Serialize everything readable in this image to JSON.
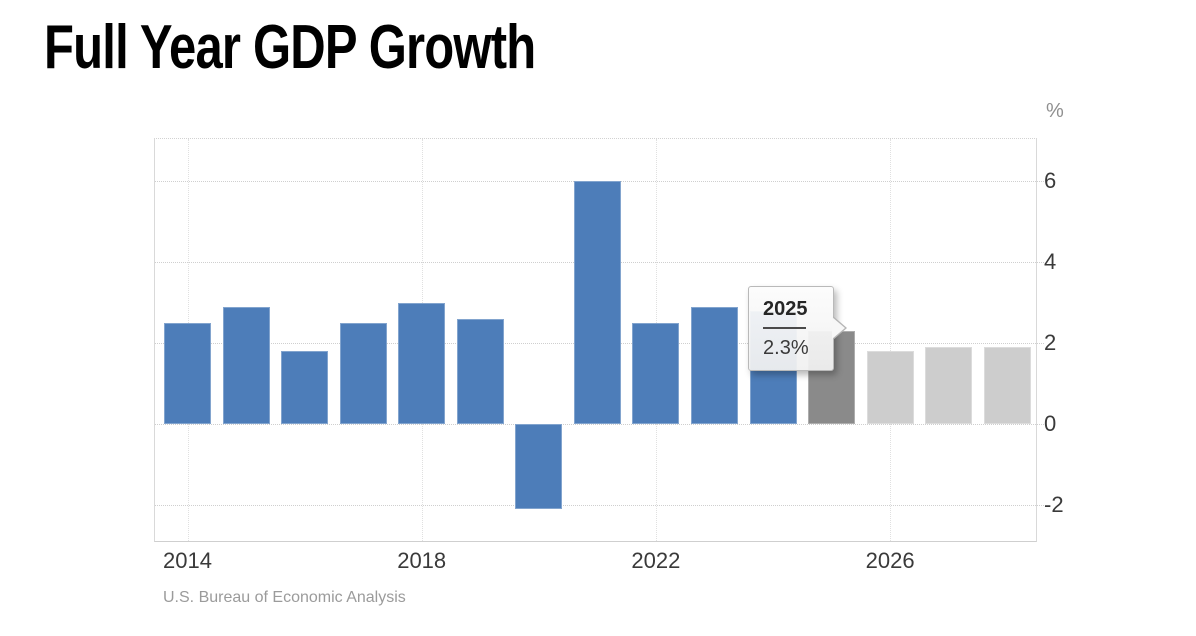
{
  "chart_data": {
    "type": "bar",
    "title": "Full Year GDP Growth",
    "unit": "%",
    "source": "U.S. Bureau of Economic Analysis",
    "categories": [
      "2014",
      "2015",
      "2016",
      "2017",
      "2018",
      "2019",
      "2020",
      "2021",
      "2022",
      "2023",
      "2024",
      "2025",
      "2026",
      "2027",
      "2028"
    ],
    "values": [
      2.5,
      2.9,
      1.8,
      2.5,
      3.0,
      2.6,
      -2.1,
      6.0,
      2.5,
      2.9,
      2.8,
      2.3,
      1.8,
      1.9,
      1.9
    ],
    "bar_styles": [
      "actual",
      "actual",
      "actual",
      "actual",
      "actual",
      "actual",
      "actual",
      "actual",
      "actual",
      "actual",
      "actual",
      "highlight",
      "forecast",
      "forecast",
      "forecast"
    ],
    "x_tick_labels": [
      "2014",
      "2018",
      "2022",
      "2026"
    ],
    "y_tick_labels": [
      "6",
      "4",
      "2",
      "0",
      "-2"
    ],
    "y_ticks": [
      6,
      4,
      2,
      0,
      -2
    ],
    "ylim": [
      -2.9,
      7.05
    ],
    "grid": "dotted",
    "legend": "none",
    "tooltip": {
      "year": "2025",
      "value": "2.3%",
      "target_category": "2025"
    },
    "colors": {
      "actual": "#4d7db9",
      "highlight": "#8a8a8a",
      "forecast": "#cdcdcd",
      "grid": "#cfcfcf",
      "tick_text": "#3a3a3a",
      "muted_text": "#9b9b9b"
    }
  }
}
